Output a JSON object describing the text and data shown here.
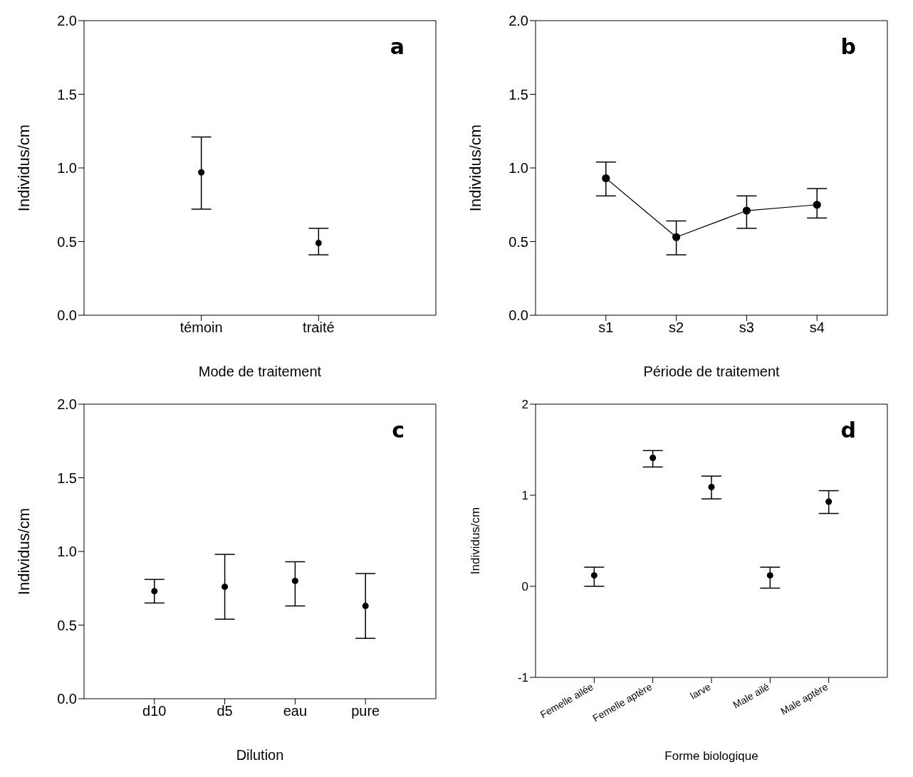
{
  "chart_data": [
    {
      "type": "scatter",
      "xlabel": "Mode de traitement",
      "ylabel": "Individus/cm",
      "annotations": [
        "a"
      ],
      "categories": [
        "témoin",
        "traité"
      ],
      "series": [
        {
          "color": "#000000",
          "values": [
            0.97,
            0.49
          ],
          "errors": [
            [
              0.72,
              1.21
            ],
            [
              0.41,
              0.59
            ]
          ]
        }
      ],
      "ylim": [
        0,
        2
      ],
      "yticks": [
        {
          "value": 0,
          "label": "0.0"
        },
        {
          "value": 0.5,
          "label": "0.5"
        },
        {
          "value": 1,
          "label": "1.0"
        },
        {
          "value": 1.5,
          "label": "1.5"
        },
        {
          "value": 2,
          "label": "2.0"
        }
      ],
      "grid": false,
      "legend": false,
      "marker": "circle"
    },
    {
      "type": "line",
      "xlabel": "Période de traitement",
      "ylabel": "Individus/cm",
      "annotations": [
        "b"
      ],
      "categories": [
        "s1",
        "s2",
        "s3",
        "s4"
      ],
      "series": [
        {
          "color": "#000000",
          "values": [
            0.93,
            0.53,
            0.71,
            0.75
          ],
          "errors": [
            [
              0.81,
              1.04
            ],
            [
              0.41,
              0.64
            ],
            [
              0.59,
              0.81
            ],
            [
              0.66,
              0.86
            ]
          ]
        }
      ],
      "ylim": [
        0,
        2
      ],
      "yticks": [
        {
          "value": 0,
          "label": "0.0"
        },
        {
          "value": 0.5,
          "label": "0.5"
        },
        {
          "value": 1,
          "label": "1.0"
        },
        {
          "value": 1.5,
          "label": "1.5"
        },
        {
          "value": 2,
          "label": "2.0"
        }
      ],
      "grid": false,
      "legend": false,
      "marker": "circle",
      "line_style": "solid"
    },
    {
      "type": "scatter",
      "xlabel": "Dilution",
      "ylabel": "Individus/cm",
      "annotations": [
        "c"
      ],
      "categories": [
        "d10",
        "d5",
        "eau",
        "pure"
      ],
      "series": [
        {
          "color": "#000000",
          "values": [
            0.73,
            0.76,
            0.8,
            0.63
          ],
          "errors": [
            [
              0.65,
              0.81
            ],
            [
              0.54,
              0.98
            ],
            [
              0.63,
              0.93
            ],
            [
              0.41,
              0.85
            ]
          ]
        }
      ],
      "ylim": [
        0,
        2
      ],
      "yticks": [
        {
          "value": 0,
          "label": "0.0"
        },
        {
          "value": 0.5,
          "label": "0.5"
        },
        {
          "value": 1,
          "label": "1.0"
        },
        {
          "value": 1.5,
          "label": "1.5"
        },
        {
          "value": 2,
          "label": "2.0"
        }
      ],
      "grid": false,
      "legend": false,
      "marker": "circle"
    },
    {
      "type": "scatter",
      "xlabel": "Forme biologique",
      "ylabel": "Individus/cm",
      "annotations": [
        "d"
      ],
      "categories": [
        "Femelle ailée",
        "Femelle aptère",
        "larve",
        "Male ailé",
        "Male aptère"
      ],
      "series": [
        {
          "color": "#000000",
          "values": [
            0.12,
            1.41,
            1.09,
            0.12,
            0.93
          ],
          "errors": [
            [
              0.0,
              0.21
            ],
            [
              1.31,
              1.49
            ],
            [
              0.96,
              1.21
            ],
            [
              -0.02,
              0.21
            ],
            [
              0.8,
              1.05
            ]
          ]
        }
      ],
      "ylim": [
        -1,
        2
      ],
      "yticks": [
        -1,
        0,
        1,
        2
      ],
      "grid": false,
      "legend": false,
      "marker": "circle"
    }
  ]
}
